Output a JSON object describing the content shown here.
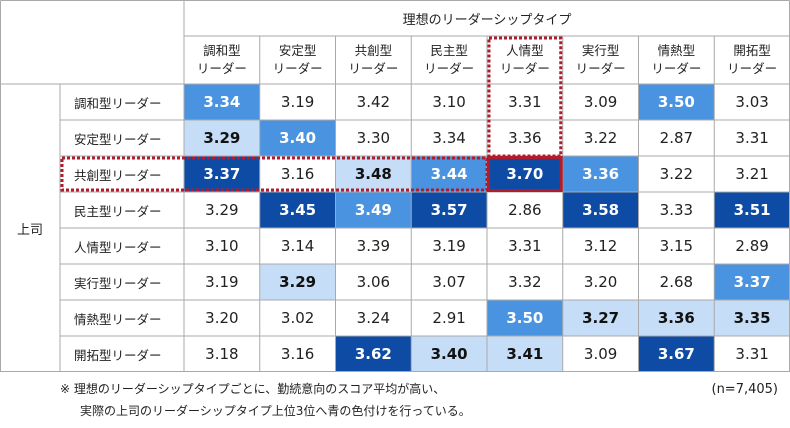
{
  "header_title": "理想のリーダーシップタイプ",
  "row_group_label": "上司",
  "chart_data": {
    "type": "heatmap",
    "title": "理想のリーダーシップタイプ",
    "x_label": "理想のリーダーシップタイプ",
    "y_label": "上司",
    "columns": [
      [
        "調和型",
        "リーダー"
      ],
      [
        "安定型",
        "リーダー"
      ],
      [
        "共創型",
        "リーダー"
      ],
      [
        "民主型",
        "リーダー"
      ],
      [
        "人情型",
        "リーダー"
      ],
      [
        "実行型",
        "リーダー"
      ],
      [
        "情熱型",
        "リーダー"
      ],
      [
        "開拓型",
        "リーダー"
      ]
    ],
    "rows": [
      "調和型リーダー",
      "安定型リーダー",
      "共創型リーダー",
      "民主型リーダー",
      "人情型リーダー",
      "実行型リーダー",
      "情熱型リーダー",
      "開拓型リーダー"
    ],
    "values": [
      [
        "3.34",
        "3.19",
        "3.42",
        "3.10",
        "3.31",
        "3.09",
        "3.50",
        "3.03"
      ],
      [
        "3.29",
        "3.40",
        "3.30",
        "3.34",
        "3.36",
        "3.22",
        "2.87",
        "3.31"
      ],
      [
        "3.37",
        "3.16",
        "3.48",
        "3.44",
        "3.70",
        "3.36",
        "3.22",
        "3.21"
      ],
      [
        "3.29",
        "3.45",
        "3.49",
        "3.57",
        "2.86",
        "3.58",
        "3.33",
        "3.51"
      ],
      [
        "3.10",
        "3.14",
        "3.39",
        "3.19",
        "3.31",
        "3.12",
        "3.15",
        "2.89"
      ],
      [
        "3.19",
        "3.29",
        "3.06",
        "3.07",
        "3.32",
        "3.20",
        "2.68",
        "3.37"
      ],
      [
        "3.20",
        "3.02",
        "3.24",
        "2.91",
        "3.50",
        "3.27",
        "3.36",
        "3.35"
      ],
      [
        "3.18",
        "3.16",
        "3.62",
        "3.40",
        "3.41",
        "3.09",
        "3.67",
        "3.31"
      ]
    ],
    "rank": [
      [
        2,
        0,
        0,
        0,
        0,
        0,
        2,
        0
      ],
      [
        3,
        2,
        0,
        0,
        0,
        0,
        0,
        0
      ],
      [
        1,
        0,
        3,
        2,
        1,
        2,
        0,
        0
      ],
      [
        0,
        1,
        2,
        1,
        0,
        1,
        0,
        1
      ],
      [
        0,
        0,
        0,
        0,
        0,
        0,
        0,
        0
      ],
      [
        0,
        3,
        0,
        0,
        0,
        0,
        0,
        2
      ],
      [
        0,
        0,
        0,
        0,
        2,
        3,
        3,
        3
      ],
      [
        0,
        0,
        1,
        3,
        3,
        0,
        1,
        0
      ]
    ],
    "highlight_column": 4,
    "highlight_row": 2,
    "rank_colors": {
      "1": "#0e4ba5",
      "2": "#4a93e0",
      "3": "#c5ddf6"
    }
  },
  "notes": [
    "※ 理想のリーダーシップタイプごとに、勤続意向のスコア平均が高い、",
    "実際の上司のリーダーシップタイプ上位3位へ青の色付けを行っている。"
  ],
  "sample_size": "(n=7,405)",
  "highlight_color": "#b01c2e"
}
